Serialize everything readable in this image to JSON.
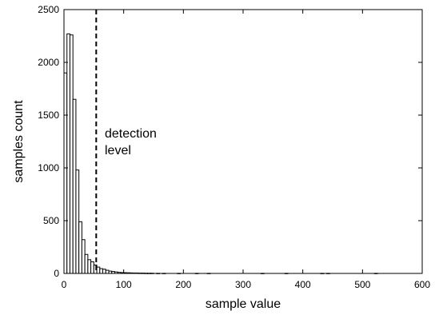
{
  "chart_data": {
    "type": "bar",
    "xlabel": "sample value",
    "ylabel": "samples count",
    "xlim": [
      0,
      600
    ],
    "ylim": [
      0,
      2500
    ],
    "xticks": [
      0,
      100,
      200,
      300,
      400,
      500,
      600
    ],
    "yticks": [
      0,
      500,
      1000,
      1500,
      2000,
      2500
    ],
    "grid": false,
    "bin_width": 5,
    "bins": [
      {
        "x": 0,
        "value": 1900
      },
      {
        "x": 5,
        "value": 2270
      },
      {
        "x": 10,
        "value": 2260
      },
      {
        "x": 15,
        "value": 1650
      },
      {
        "x": 20,
        "value": 980
      },
      {
        "x": 25,
        "value": 490
      },
      {
        "x": 30,
        "value": 320
      },
      {
        "x": 35,
        "value": 180
      },
      {
        "x": 40,
        "value": 130
      },
      {
        "x": 45,
        "value": 110
      },
      {
        "x": 50,
        "value": 80
      },
      {
        "x": 55,
        "value": 60
      },
      {
        "x": 60,
        "value": 45
      },
      {
        "x": 65,
        "value": 40
      },
      {
        "x": 70,
        "value": 30
      },
      {
        "x": 75,
        "value": 22
      },
      {
        "x": 80,
        "value": 18
      },
      {
        "x": 85,
        "value": 14
      },
      {
        "x": 90,
        "value": 10
      },
      {
        "x": 95,
        "value": 8
      },
      {
        "x": 100,
        "value": 7
      },
      {
        "x": 105,
        "value": 6
      },
      {
        "x": 110,
        "value": 5
      },
      {
        "x": 115,
        "value": 4
      },
      {
        "x": 120,
        "value": 4
      },
      {
        "x": 125,
        "value": 3
      },
      {
        "x": 130,
        "value": 3
      },
      {
        "x": 135,
        "value": 2
      },
      {
        "x": 140,
        "value": 2
      },
      {
        "x": 145,
        "value": 2
      },
      {
        "x": 155,
        "value": 1
      },
      {
        "x": 165,
        "value": 1
      },
      {
        "x": 190,
        "value": 1
      },
      {
        "x": 220,
        "value": 1
      },
      {
        "x": 240,
        "value": 1
      },
      {
        "x": 330,
        "value": 1
      },
      {
        "x": 370,
        "value": 1
      },
      {
        "x": 430,
        "value": 1
      },
      {
        "x": 440,
        "value": 1
      },
      {
        "x": 520,
        "value": 1
      }
    ],
    "threshold": {
      "x": 54,
      "label_line1": "detection",
      "label_line2": "level"
    }
  }
}
